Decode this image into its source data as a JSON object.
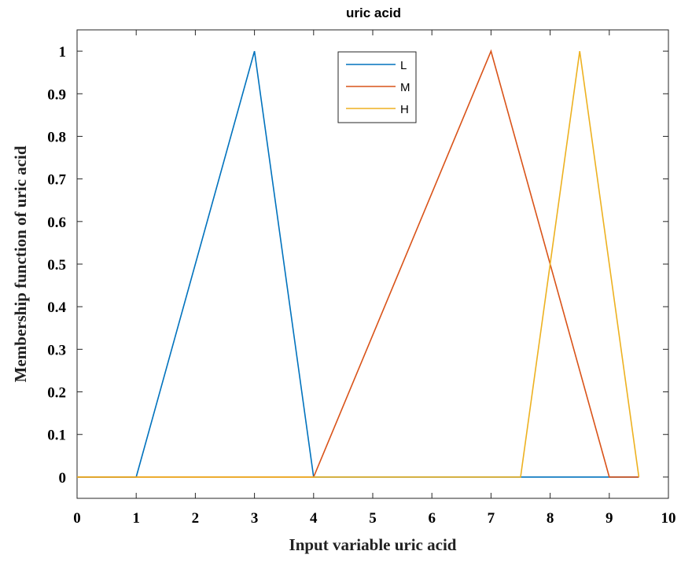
{
  "chart_data": {
    "type": "line",
    "title": "uric acid",
    "xlabel": "Input variable uric acid",
    "ylabel": "Membership function of uric acid",
    "xlim": [
      0,
      10
    ],
    "ylim": [
      -0.05,
      1.05
    ],
    "x_ticks": [
      "0",
      "1",
      "2",
      "3",
      "4",
      "5",
      "6",
      "7",
      "8",
      "9",
      "10"
    ],
    "y_ticks": [
      "0",
      "0.1",
      "0.2",
      "0.3",
      "0.4",
      "0.5",
      "0.6",
      "0.7",
      "0.8",
      "0.9",
      "1"
    ],
    "grid": false,
    "legend_position": "top-center",
    "series": [
      {
        "name": "L",
        "color": "#0072BD",
        "x": [
          0,
          1,
          3,
          4,
          9.5
        ],
        "y": [
          0,
          0,
          1,
          0,
          0
        ]
      },
      {
        "name": "M",
        "color": "#D95319",
        "x": [
          0,
          4,
          7,
          9,
          9.5
        ],
        "y": [
          0,
          0,
          1,
          0,
          0
        ]
      },
      {
        "name": "H",
        "color": "#EDB120",
        "x": [
          0,
          7.5,
          8.5,
          9.5
        ],
        "y": [
          0,
          0,
          1,
          0
        ]
      }
    ]
  }
}
